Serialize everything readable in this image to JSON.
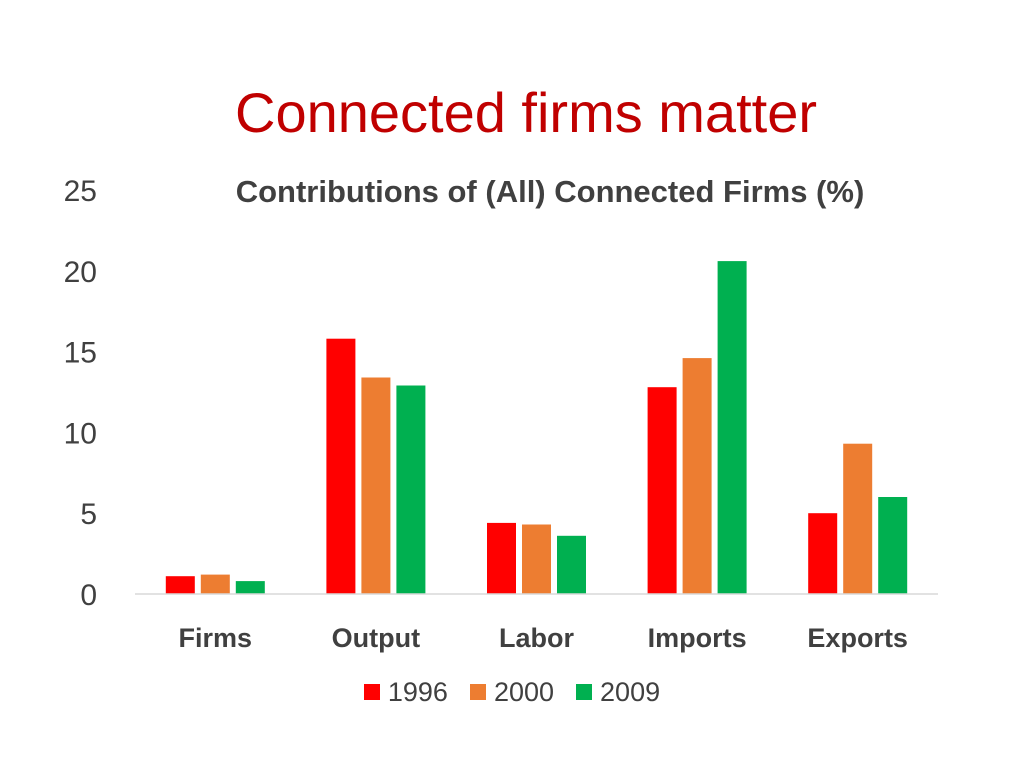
{
  "slide": {
    "title": "Connected firms matter"
  },
  "colors": {
    "title": "#c00000",
    "text": "#404040",
    "axis": "#d9d9d9"
  },
  "chart_data": {
    "type": "bar",
    "title": "Contributions of (All) Connected Firms (%)",
    "xlabel": "",
    "ylabel": "",
    "categories": [
      "Firms",
      "Output",
      "Labor",
      "Imports",
      "Exports"
    ],
    "series": [
      {
        "name": "1996",
        "color": "#ff0000",
        "values": [
          1.1,
          15.8,
          4.4,
          12.8,
          5.0
        ]
      },
      {
        "name": "2000",
        "color": "#ed7d31",
        "values": [
          1.2,
          13.4,
          4.3,
          14.6,
          9.3
        ]
      },
      {
        "name": "2009",
        "color": "#00b050",
        "values": [
          0.8,
          12.9,
          3.6,
          20.6,
          6.0
        ]
      }
    ],
    "ylim": [
      0,
      25
    ],
    "yticks": [
      0,
      5,
      10,
      15,
      20,
      25
    ],
    "grid": false,
    "legend": "bottom"
  }
}
